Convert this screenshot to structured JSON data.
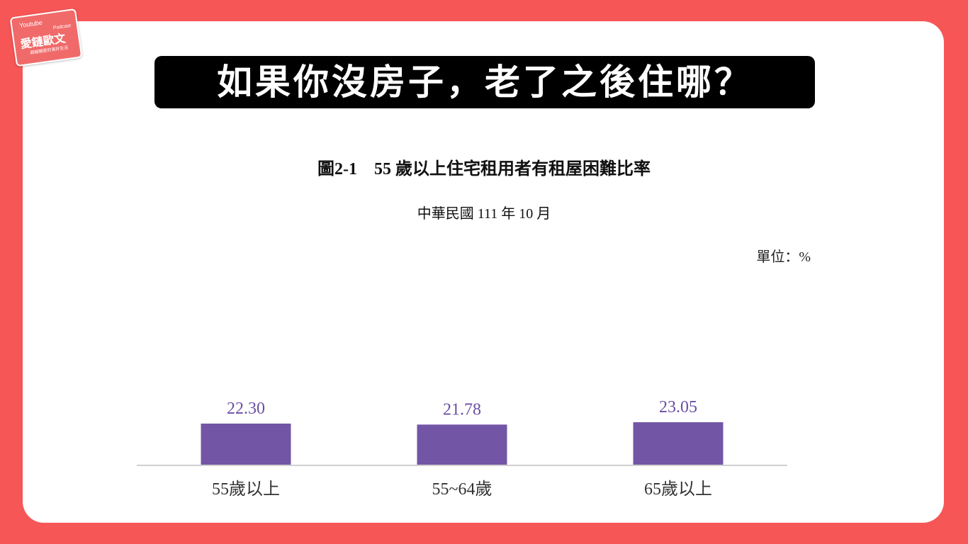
{
  "logo": {
    "top": "Youtube",
    "top2": "Podcast",
    "main": "愛鏈歐文",
    "sub": "超越親愛的美好生活"
  },
  "banner": {
    "title": "如果你沒房子，老了之後住哪？"
  },
  "colors": {
    "background": "#f75656",
    "banner_bg": "#000000",
    "bar": "#7355a6",
    "value_label": "#6b4fa3",
    "axis": "#d0d0d0"
  },
  "chart_data": {
    "type": "bar",
    "title": "圖2-1　55 歲以上住宅租用者有租屋困難比率",
    "subtitle": "中華民國 111 年 10 月",
    "unit": "單位：%",
    "categories": [
      "55歲以上",
      "55~64歲",
      "65歲以上"
    ],
    "values": [
      22.3,
      21.78,
      23.05
    ],
    "value_labels": [
      "22.30",
      "21.78",
      "23.05"
    ],
    "xlabel": "",
    "ylabel": "",
    "ylim": [
      0,
      100
    ],
    "grid": false,
    "legend": "none"
  }
}
